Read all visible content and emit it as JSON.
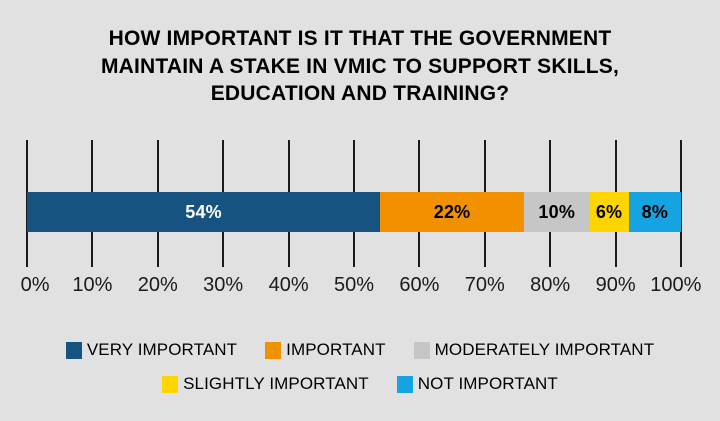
{
  "title_lines": [
    "HOW IMPORTANT IS IT THAT THE GOVERNMENT",
    "MAINTAIN A STAKE IN VMIC TO SUPPORT SKILLS,",
    "EDUCATION AND TRAINING?"
  ],
  "chart_data": {
    "type": "bar",
    "subtype": "horizontal-stacked",
    "title": "HOW IMPORTANT IS IT THAT THE GOVERNMENT MAINTAIN A STAKE IN VMIC TO SUPPORT SKILLS, EDUCATION AND TRAINING?",
    "categories": [
      "VERY IMPORTANT",
      "IMPORTANT",
      "MODERATELY IMPORTANT",
      "SLIGHTLY IMPORTANT",
      "NOT IMPORTANT"
    ],
    "values": [
      54,
      22,
      10,
      6,
      8
    ],
    "value_labels": [
      "54%",
      "22%",
      "10%",
      "6%",
      "8%"
    ],
    "colors": [
      "#165381",
      "#F29100",
      "#C6C6C6",
      "#FFD500",
      "#16A3E1"
    ],
    "value_label_colors": [
      "#FFFFFF",
      "#000000",
      "#000000",
      "#000000",
      "#000000"
    ],
    "x_ticks": [
      "0%",
      "10%",
      "20%",
      "30%",
      "40%",
      "50%",
      "60%",
      "70%",
      "80%",
      "90%",
      "100%"
    ],
    "xlim": [
      0,
      100
    ],
    "grid": true,
    "legend_position": "bottom",
    "legend_rows": [
      [
        0,
        1,
        2
      ],
      [
        3,
        4
      ]
    ]
  },
  "colors": {
    "background": "#E1E1E1",
    "grid": "#1A1A1A",
    "title_text": "#000000",
    "axis_text": "#1A1A1A"
  }
}
